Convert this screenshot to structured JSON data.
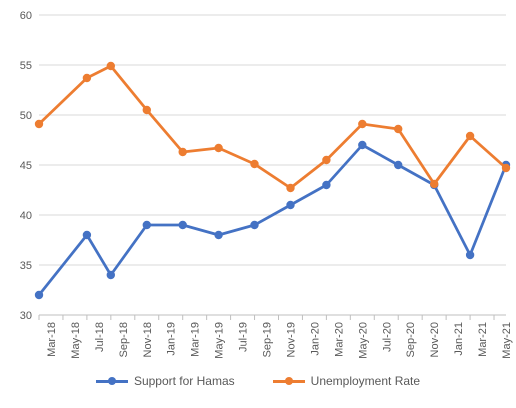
{
  "chart_data": {
    "type": "line",
    "title": "",
    "xlabel": "",
    "ylabel": "",
    "categories": [
      "Mar-18",
      "May-18",
      "Jul-18",
      "Sep-18",
      "Nov-18",
      "Jan-19",
      "Mar-19",
      "May-19",
      "Jul-19",
      "Sep-19",
      "Nov-19",
      "Jan-20",
      "Mar-20",
      "May-20",
      "Jul-20",
      "Sep-20",
      "Nov-20",
      "Jan-21",
      "Mar-21",
      "May-21"
    ],
    "ylim": [
      30,
      60
    ],
    "yticks": [
      30,
      35,
      40,
      45,
      50,
      55,
      60
    ],
    "grid": "horizontal",
    "legend_position": "bottom",
    "series": [
      {
        "name": "Support for Hamas",
        "color": "#4472C4",
        "points": [
          {
            "x": "Mar-18",
            "y": 32
          },
          {
            "x": "Jul-18",
            "y": 38
          },
          {
            "x": "Sep-18",
            "y": 34
          },
          {
            "x": "Dec-18",
            "y": 39
          },
          {
            "x": "Mar-19",
            "y": 39
          },
          {
            "x": "Jun-19",
            "y": 38
          },
          {
            "x": "Sep-19",
            "y": 39
          },
          {
            "x": "Dec-19",
            "y": 41
          },
          {
            "x": "Mar-20",
            "y": 43
          },
          {
            "x": "Jun-20",
            "y": 47
          },
          {
            "x": "Sep-20",
            "y": 45
          },
          {
            "x": "Dec-20",
            "y": 43
          },
          {
            "x": "Mar-21",
            "y": 36
          },
          {
            "x": "Jun-21",
            "y": 45
          }
        ]
      },
      {
        "name": "Unemployment Rate",
        "color": "#ED7D31",
        "points": [
          {
            "x": "Mar-18",
            "y": 49.1
          },
          {
            "x": "Jul-18",
            "y": 53.7
          },
          {
            "x": "Sep-18",
            "y": 54.9
          },
          {
            "x": "Dec-18",
            "y": 50.5
          },
          {
            "x": "Mar-19",
            "y": 46.3
          },
          {
            "x": "Jun-19",
            "y": 46.7
          },
          {
            "x": "Sep-19",
            "y": 45.1
          },
          {
            "x": "Dec-19",
            "y": 42.7
          },
          {
            "x": "Mar-20",
            "y": 45.5
          },
          {
            "x": "Jun-20",
            "y": 49.1
          },
          {
            "x": "Sep-20",
            "y": 48.6
          },
          {
            "x": "Dec-20",
            "y": 43.1
          },
          {
            "x": "Mar-21",
            "y": 47.9
          },
          {
            "x": "Jun-21",
            "y": 44.7
          }
        ]
      }
    ]
  }
}
